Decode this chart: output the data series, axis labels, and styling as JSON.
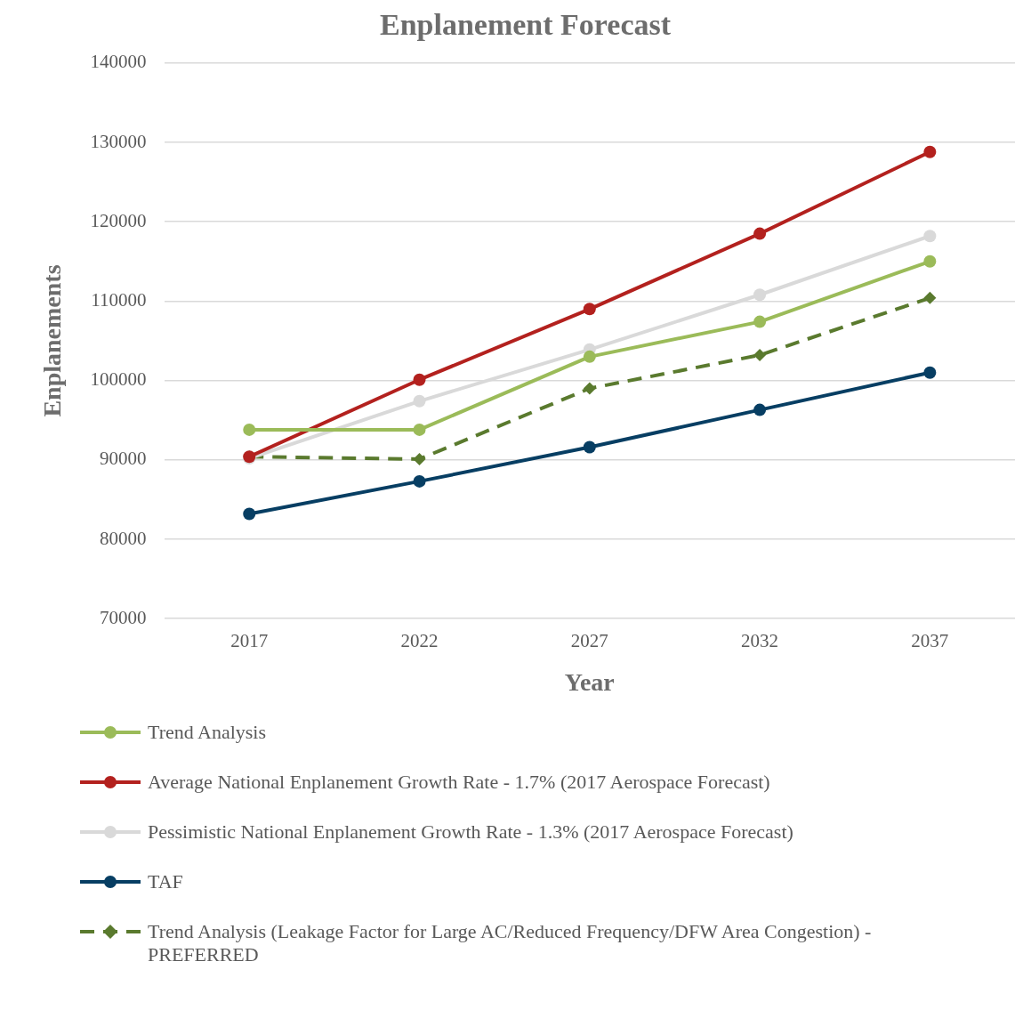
{
  "chart_data": {
    "type": "line",
    "title": "Enplanement Forecast",
    "xlabel": "Year",
    "ylabel": "Enplanements",
    "categories": [
      "2017",
      "2022",
      "2027",
      "2032",
      "2037"
    ],
    "ylim": [
      70000,
      140000
    ],
    "yticks": [
      70000,
      80000,
      90000,
      100000,
      110000,
      120000,
      130000,
      140000
    ],
    "grid": "y",
    "legend": "bottom",
    "marker": "circle",
    "line_style": "solid",
    "series": [
      {
        "name": "Trend Analysis",
        "color": "#9bbb59",
        "values": [
          93800,
          93800,
          103000,
          107400,
          115000
        ]
      },
      {
        "name": "Average National Enplanement Growth Rate - 1.7% (2017 Aerospace Forecast)",
        "color": "#b3211e",
        "values": [
          90400,
          100100,
          109000,
          118500,
          128800
        ]
      },
      {
        "name": "Pessimistic National Enplanement Growth Rate - 1.3% (2017 Aerospace Forecast)",
        "color": "#d9d9d9",
        "values": [
          90200,
          97400,
          103900,
          110800,
          118200
        ]
      },
      {
        "name": "TAF",
        "color": "#073e63",
        "values": [
          83200,
          87300,
          91600,
          96300,
          101000
        ]
      },
      {
        "name": "Trend Analysis (Leakage Factor for Large AC/Reduced Frequency/DFW Area Congestion) - PREFERRED",
        "color": "#5a7a2e",
        "values": [
          90400,
          90100,
          99000,
          103200,
          110400
        ],
        "line_style": "dashed",
        "marker": "diamond"
      }
    ]
  }
}
